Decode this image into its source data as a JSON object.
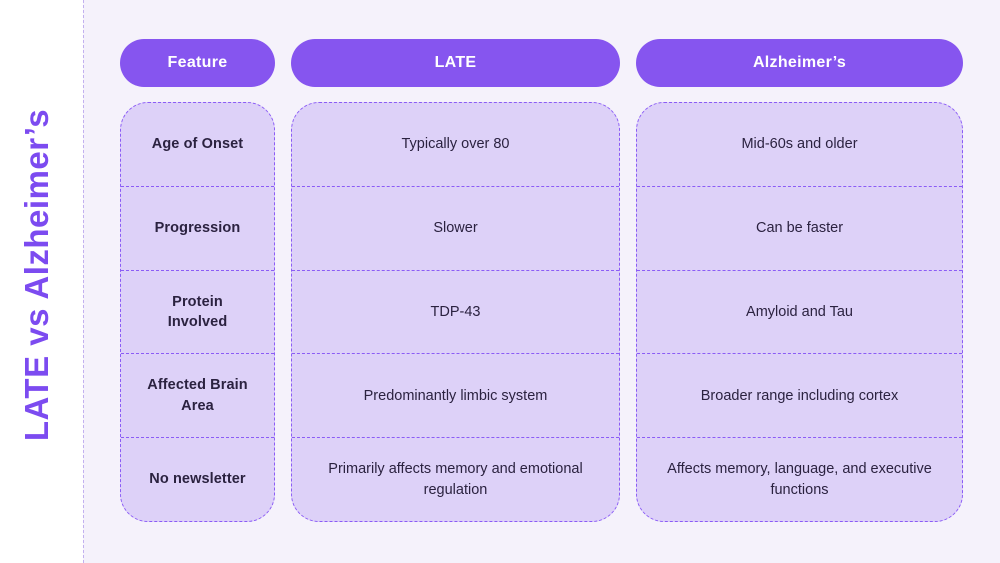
{
  "page": {
    "vertical_title": "LATE vs Alzheimer’s",
    "colors": {
      "background": "#f5f2fb",
      "side_strip": "#ffffff",
      "accent_purple": "#8655ef",
      "title_purple": "#7c4bf0",
      "cell_background": "#ddd1f8",
      "dashed_border": "#8b5cf6",
      "text": "#2b2240",
      "header_text": "#ffffff"
    }
  },
  "chart_data": {
    "type": "table",
    "title": "LATE vs Alzheimer’s",
    "columns": [
      "Feature",
      "LATE",
      "Alzheimer’s"
    ],
    "rows": [
      [
        "Age of Onset",
        "Typically over 80",
        "Mid-60s and older"
      ],
      [
        "Progression",
        "Slower",
        "Can be faster"
      ],
      [
        "Protein Involved",
        "TDP-43",
        "Amyloid and Tau"
      ],
      [
        "Affected Brain Area",
        "Predominantly limbic system",
        "Broader range including cortex"
      ],
      [
        "No newsletter",
        "Primarily affects memory and emotional regulation",
        "Affects memory, language, and executive functions"
      ]
    ],
    "layout": {
      "header_style": "purple-pill",
      "body_style": "dashed-rounded-cards",
      "title_orientation": "rotated-90-left"
    }
  }
}
